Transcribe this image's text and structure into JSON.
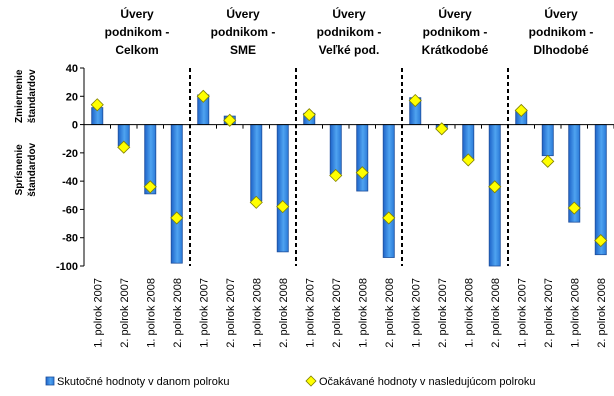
{
  "chart_data": {
    "type": "bar",
    "groups": [
      {
        "title": [
          "Úvery",
          "podnikom -",
          "Celkom"
        ]
      },
      {
        "title": [
          "Úvery",
          "podnikom -",
          "SME"
        ]
      },
      {
        "title": [
          "Úvery",
          "podnikom -",
          "Veľké pod."
        ]
      },
      {
        "title": [
          "Úvery",
          "podnikom -",
          "Krátkodobé"
        ]
      },
      {
        "title": [
          "Úvery",
          "podnikom -",
          "Dlhodobé"
        ]
      }
    ],
    "categories": [
      "1. polrok 2007",
      "2. polrok 2007",
      "1. polrok 2008",
      "2. polrok 2008"
    ],
    "series": [
      {
        "name": "Skutočné hodnoty v danom polroku",
        "type": "bar",
        "values": [
          [
            12,
            -15,
            -49,
            -98
          ],
          [
            21,
            6,
            -54,
            -90
          ],
          [
            8,
            -35,
            -47,
            -94
          ],
          [
            19,
            -3,
            -24,
            -100
          ],
          [
            10,
            -22,
            -69,
            -92
          ]
        ]
      },
      {
        "name": "Očakávané hodnoty v nasledujúcom polroku",
        "type": "scatter",
        "values": [
          [
            14,
            -16,
            -44,
            -66
          ],
          [
            20,
            3,
            -55,
            -58
          ],
          [
            7,
            -36,
            -34,
            -66
          ],
          [
            17,
            -3,
            -25,
            -44
          ],
          [
            10,
            -26,
            -59,
            -82
          ]
        ]
      }
    ],
    "ylim": [
      -100,
      40
    ],
    "yticks": [
      -100,
      -80,
      -60,
      -40,
      -20,
      0,
      20,
      40
    ],
    "ylabel_upper": [
      "Zmiernenie",
      "štandardov"
    ],
    "ylabel_lower": [
      "Sprísnenie",
      "štandardov"
    ],
    "legend_position": "bottom",
    "grid": false,
    "colors": {
      "bar_fill": "#3b8fe0",
      "bar_stroke": "#1f4f9c",
      "marker_fill": "#ffff00",
      "marker_stroke": "#7f7f00",
      "axis": "#000000"
    }
  }
}
